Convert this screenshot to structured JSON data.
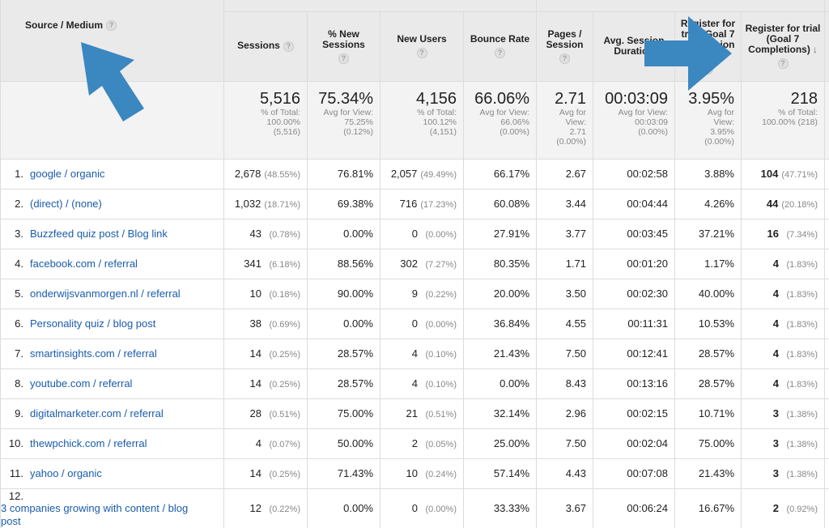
{
  "headers": {
    "source_medium": "Source / Medium",
    "sessions": "Sessions",
    "new_sessions": "% New Sessions",
    "new_users": "New Users",
    "bounce_rate": "Bounce Rate",
    "pages_session": "Pages / Session",
    "avg_session_duration": "Avg. Session Duration",
    "conversion_rate": "Register for trial (Goal 7 Conversion Rate)",
    "completions": "Register for trial (Goal 7 Completions)",
    "help_glyph": "?",
    "sort_glyph": "↓"
  },
  "totals": {
    "sessions": {
      "value": "5,516",
      "l1": "% of Total:",
      "l2": "100.00%",
      "l3": "(5,516)"
    },
    "new_sessions": {
      "value": "75.34%",
      "l1": "Avg for View:",
      "l2": "75.25%",
      "l3": "(0.12%)"
    },
    "new_users": {
      "value": "4,156",
      "l1": "% of Total:",
      "l2": "100.12%",
      "l3": "(4,151)"
    },
    "bounce_rate": {
      "value": "66.06%",
      "l1": "Avg for View:",
      "l2": "66.06%",
      "l3": "(0.00%)"
    },
    "pages_session": {
      "value": "2.71",
      "l1": "Avg for",
      "l2": "View:",
      "l3": "2.71",
      "l4": "(0.00%)"
    },
    "avg_duration": {
      "value": "00:03:09",
      "l1": "Avg for View:",
      "l2": "00:03:09",
      "l3": "(0.00%)"
    },
    "conversion_rate": {
      "value": "3.95%",
      "l1": "Avg for",
      "l2": "View:",
      "l3": "3.95%",
      "l4": "(0.00%)"
    },
    "completions": {
      "value": "218",
      "l1": "% of Total:",
      "l2": "100.00% (218)"
    }
  },
  "rows": [
    {
      "rank": "1.",
      "source": "google / organic",
      "sessions": "2,678",
      "sessions_pct": "(48.55%)",
      "new_sessions": "76.81%",
      "new_users": "2,057",
      "new_users_pct": "(49.49%)",
      "bounce": "66.17%",
      "pages": "2.67",
      "duration": "00:02:58",
      "conv": "3.88%",
      "goal": "104",
      "goal_pct": "(47.71%)"
    },
    {
      "rank": "2.",
      "source": "(direct) / (none)",
      "sessions": "1,032",
      "sessions_pct": "(18.71%)",
      "new_sessions": "69.38%",
      "new_users": "716",
      "new_users_pct": "(17.23%)",
      "bounce": "60.08%",
      "pages": "3.44",
      "duration": "00:04:44",
      "conv": "4.26%",
      "goal": "44",
      "goal_pct": "(20.18%)"
    },
    {
      "rank": "3.",
      "source": "Buzzfeed quiz post / Blog link",
      "sessions": "43",
      "sessions_pct": "(0.78%)",
      "new_sessions": "0.00%",
      "new_users": "0",
      "new_users_pct": "(0.00%)",
      "bounce": "27.91%",
      "pages": "3.77",
      "duration": "00:03:45",
      "conv": "37.21%",
      "goal": "16",
      "goal_pct": "(7.34%)"
    },
    {
      "rank": "4.",
      "source": "facebook.com / referral",
      "sessions": "341",
      "sessions_pct": "(6.18%)",
      "new_sessions": "88.56%",
      "new_users": "302",
      "new_users_pct": "(7.27%)",
      "bounce": "80.35%",
      "pages": "1.71",
      "duration": "00:01:20",
      "conv": "1.17%",
      "goal": "4",
      "goal_pct": "(1.83%)"
    },
    {
      "rank": "5.",
      "source": "onderwijsvanmorgen.nl / referral",
      "sessions": "10",
      "sessions_pct": "(0.18%)",
      "new_sessions": "90.00%",
      "new_users": "9",
      "new_users_pct": "(0.22%)",
      "bounce": "20.00%",
      "pages": "3.50",
      "duration": "00:02:30",
      "conv": "40.00%",
      "goal": "4",
      "goal_pct": "(1.83%)"
    },
    {
      "rank": "6.",
      "source": "Personality quiz / blog post",
      "sessions": "38",
      "sessions_pct": "(0.69%)",
      "new_sessions": "0.00%",
      "new_users": "0",
      "new_users_pct": "(0.00%)",
      "bounce": "36.84%",
      "pages": "4.55",
      "duration": "00:11:31",
      "conv": "10.53%",
      "goal": "4",
      "goal_pct": "(1.83%)"
    },
    {
      "rank": "7.",
      "source": "smartinsights.com / referral",
      "sessions": "14",
      "sessions_pct": "(0.25%)",
      "new_sessions": "28.57%",
      "new_users": "4",
      "new_users_pct": "(0.10%)",
      "bounce": "21.43%",
      "pages": "7.50",
      "duration": "00:12:41",
      "conv": "28.57%",
      "goal": "4",
      "goal_pct": "(1.83%)"
    },
    {
      "rank": "8.",
      "source": "youtube.com / referral",
      "sessions": "14",
      "sessions_pct": "(0.25%)",
      "new_sessions": "28.57%",
      "new_users": "4",
      "new_users_pct": "(0.10%)",
      "bounce": "0.00%",
      "pages": "8.43",
      "duration": "00:13:16",
      "conv": "28.57%",
      "goal": "4",
      "goal_pct": "(1.83%)"
    },
    {
      "rank": "9.",
      "source": "digitalmarketer.com / referral",
      "sessions": "28",
      "sessions_pct": "(0.51%)",
      "new_sessions": "75.00%",
      "new_users": "21",
      "new_users_pct": "(0.51%)",
      "bounce": "32.14%",
      "pages": "2.96",
      "duration": "00:02:15",
      "conv": "10.71%",
      "goal": "3",
      "goal_pct": "(1.38%)"
    },
    {
      "rank": "10.",
      "source": "thewpchick.com / referral",
      "sessions": "4",
      "sessions_pct": "(0.07%)",
      "new_sessions": "50.00%",
      "new_users": "2",
      "new_users_pct": "(0.05%)",
      "bounce": "25.00%",
      "pages": "7.50",
      "duration": "00:02:04",
      "conv": "75.00%",
      "goal": "3",
      "goal_pct": "(1.38%)"
    },
    {
      "rank": "11.",
      "source": "yahoo / organic",
      "sessions": "14",
      "sessions_pct": "(0.25%)",
      "new_sessions": "71.43%",
      "new_users": "10",
      "new_users_pct": "(0.24%)",
      "bounce": "57.14%",
      "pages": "4.43",
      "duration": "00:07:08",
      "conv": "21.43%",
      "goal": "3",
      "goal_pct": "(1.38%)"
    },
    {
      "rank": "12.",
      "source": "3 companies growing with content / blog post",
      "sessions": "12",
      "sessions_pct": "(0.22%)",
      "new_sessions": "0.00%",
      "new_users": "0",
      "new_users_pct": "(0.00%)",
      "bounce": "33.33%",
      "pages": "3.67",
      "duration": "00:06:24",
      "conv": "16.67%",
      "goal": "2",
      "goal_pct": "(0.92%)"
    }
  ],
  "annotations": {
    "arrow_color": "#3b87c0"
  }
}
